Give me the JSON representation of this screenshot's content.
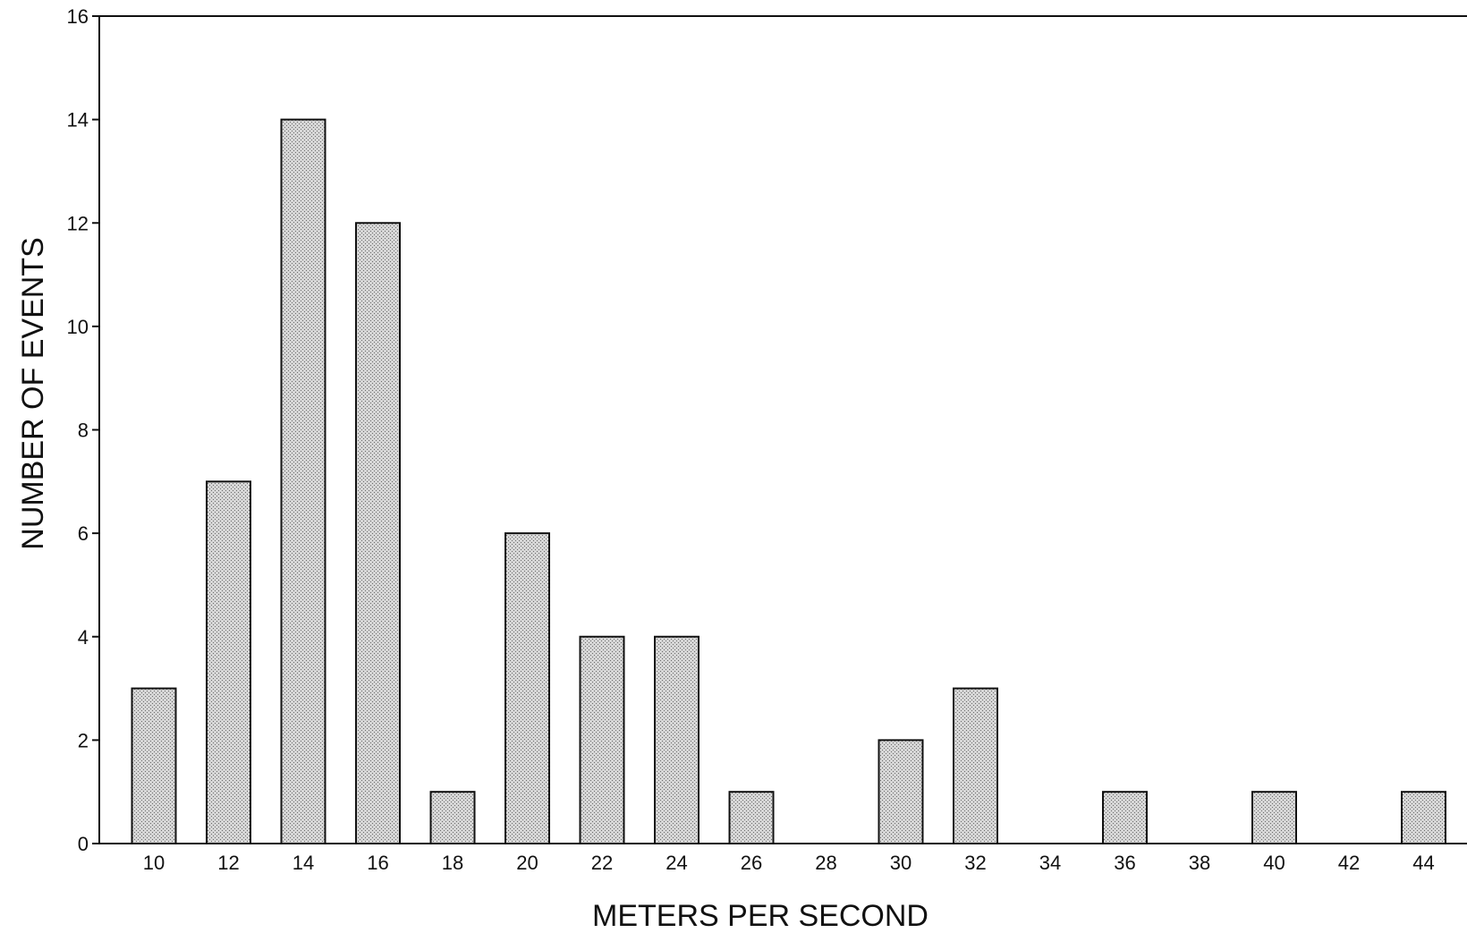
{
  "chart_data": {
    "type": "bar",
    "title": "",
    "xlabel": "METERS PER SECOND",
    "ylabel": "NUMBER OF EVENTS",
    "categories": [
      "10",
      "12",
      "14",
      "16",
      "18",
      "20",
      "22",
      "24",
      "26",
      "28",
      "30",
      "32",
      "34",
      "36",
      "38",
      "40",
      "42",
      "44"
    ],
    "values": [
      3,
      7,
      14,
      12,
      1,
      6,
      4,
      4,
      1,
      0,
      2,
      3,
      0,
      1,
      0,
      1,
      0,
      1
    ],
    "ylim": [
      0,
      16
    ],
    "yticks": [
      "0",
      "2",
      "4",
      "6",
      "8",
      "10",
      "12",
      "14",
      "16"
    ],
    "grid": false,
    "bar_color": "#c4c4c4",
    "bar_edge_color": "#111111"
  }
}
